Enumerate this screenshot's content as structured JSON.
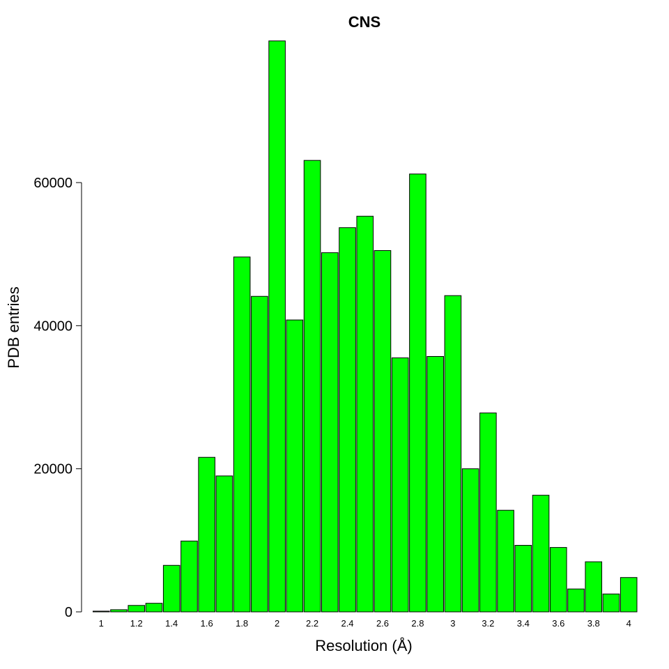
{
  "chart_data": {
    "type": "bar",
    "title": "CNS",
    "xlabel": "Resolution (Å)",
    "ylabel": "PDB entries",
    "bar_color": "#00ff00",
    "bar_edge_color": "#000000",
    "grid": false,
    "legend": "none",
    "x": [
      1.0,
      1.1,
      1.2,
      1.3,
      1.4,
      1.5,
      1.6,
      1.7,
      1.8,
      1.9,
      2.0,
      2.1,
      2.2,
      2.3,
      2.4,
      2.5,
      2.6,
      2.7,
      2.8,
      2.9,
      3.0,
      3.1,
      3.2,
      3.3,
      3.4,
      3.5,
      3.6,
      3.7,
      3.8,
      3.9,
      4.0
    ],
    "values": [
      100,
      300,
      900,
      1200,
      6500,
      9900,
      21600,
      19000,
      49600,
      44100,
      79800,
      40800,
      63100,
      50200,
      53700,
      55300,
      50500,
      35500,
      61200,
      35700,
      44200,
      20000,
      27800,
      14200,
      9300,
      16300,
      9000,
      3200,
      7000,
      2500,
      4800
    ],
    "xticks": [
      "1",
      "1.2",
      "1.4",
      "1.6",
      "1.8",
      "2",
      "2.2",
      "2.4",
      "2.6",
      "2.8",
      "3",
      "3.2",
      "3.4",
      "3.6",
      "3.8",
      "4"
    ],
    "yticks": [
      0,
      20000,
      40000,
      60000
    ],
    "ytick_labels": [
      "0",
      "20000",
      "40000",
      "60000"
    ],
    "ylim": [
      0,
      80000
    ]
  }
}
